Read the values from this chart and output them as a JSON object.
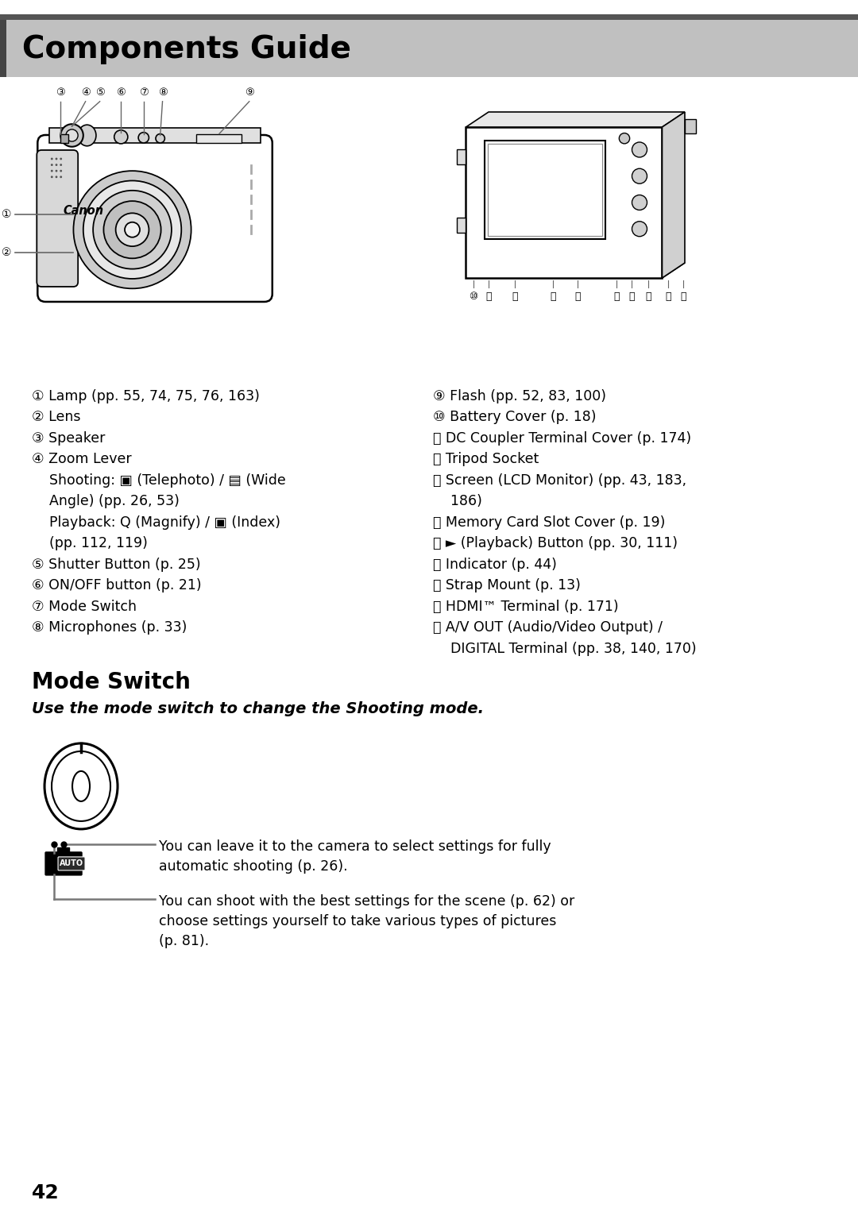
{
  "title": "Components Guide",
  "title_bg": "#c0c0c0",
  "title_color": "#000000",
  "title_border": "#555555",
  "bg_color": "#ffffff",
  "page_number": "42",
  "mode_switch_title": "Mode Switch",
  "mode_switch_subtitle": "Use the mode switch to change the Shooting mode.",
  "left_texts": [
    [
      "①",
      " Lamp (pp. 55, 74, 75, 76, 163)"
    ],
    [
      "②",
      " Lens"
    ],
    [
      "③",
      " Speaker"
    ],
    [
      "④",
      " Zoom Lever"
    ],
    [
      "",
      "    Shooting: ▣ (Telephoto) / ▤ (Wide"
    ],
    [
      "",
      "    Angle) (pp. 26, 53)"
    ],
    [
      "",
      "    Playback: Q (Magnify) / ▣ (Index)"
    ],
    [
      "",
      "    (pp. 112, 119)"
    ],
    [
      "⑤",
      " Shutter Button (p. 25)"
    ],
    [
      "⑥",
      " ON/OFF button (p. 21)"
    ],
    [
      "⑦",
      " Mode Switch"
    ],
    [
      "⑧",
      " Microphones (p. 33)"
    ]
  ],
  "right_texts": [
    [
      "⑨",
      " Flash (pp. 52, 83, 100)"
    ],
    [
      "⑩",
      " Battery Cover (p. 18)"
    ],
    [
      "⑪",
      " DC Coupler Terminal Cover (p. 174)"
    ],
    [
      "⑫",
      " Tripod Socket"
    ],
    [
      "⑬",
      " Screen (LCD Monitor) (pp. 43, 183,"
    ],
    [
      "",
      "     186)"
    ],
    [
      "⑭",
      " Memory Card Slot Cover (p. 19)"
    ],
    [
      "⑮",
      " ► (Playback) Button (pp. 30, 111)"
    ],
    [
      "⑯",
      " Indicator (p. 44)"
    ],
    [
      "⑰",
      " Strap Mount (p. 13)"
    ],
    [
      "⑱",
      " HDMI™ Terminal (p. 171)"
    ],
    [
      "⑲",
      " A/V OUT (Audio/Video Output) /"
    ],
    [
      "",
      "    DIGITAL Terminal (pp. 38, 140, 170)"
    ]
  ],
  "auto_text1": "You can leave it to the camera to select settings for fully\nautomatic shooting (p. 26).",
  "auto_text2": "You can shoot with the best settings for the scene (p. 62) or\nchoose settings yourself to take various types of pictures\n(p. 81).",
  "label_font_size": 12.5,
  "title_font_size": 28,
  "ms_title_font_size": 20,
  "ms_sub_font_size": 14,
  "page_num_font_size": 18
}
